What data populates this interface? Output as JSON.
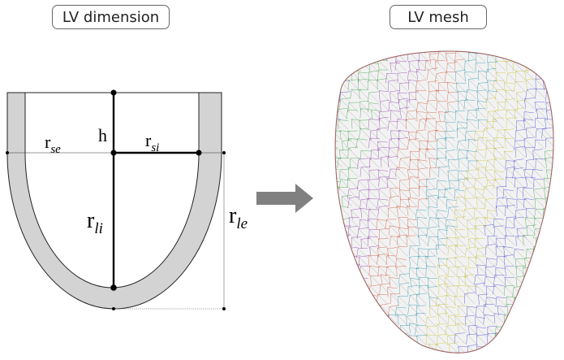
{
  "panels": {
    "left_title": "LV dimension",
    "right_title": "LV mesh"
  },
  "labels": {
    "h": "h",
    "r_se_main": "r",
    "r_se_sub": "se",
    "r_si_main": "r",
    "r_si_sub": "si",
    "r_li_main": "r",
    "r_li_sub": "li",
    "r_le_main": "r",
    "r_le_sub": "le"
  },
  "colors": {
    "wall_fill": "#d3d3d3",
    "arrow": "#808080",
    "mesh_colors": [
      "#3b3bd6",
      "#2e9e3a",
      "#8a2ea8",
      "#d24a2a",
      "#1a8fa8",
      "#c8c020"
    ]
  },
  "icons": {
    "transition": "right-arrow-icon"
  }
}
